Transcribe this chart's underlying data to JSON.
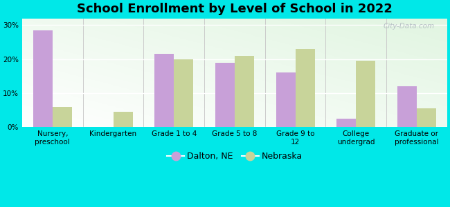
{
  "title": "School Enrollment by Level of School in 2022",
  "categories": [
    "Nursery,\npreschool",
    "Kindergarten",
    "Grade 1 to 4",
    "Grade 5 to 8",
    "Grade 9 to\n12",
    "College\nundergrad",
    "Graduate or\nprofessional"
  ],
  "dalton": [
    28.5,
    0.0,
    21.5,
    19.0,
    16.0,
    2.5,
    12.0
  ],
  "nebraska": [
    6.0,
    4.5,
    20.0,
    21.0,
    23.0,
    19.5,
    5.5
  ],
  "dalton_color": "#c8a0d8",
  "nebraska_color": "#c8d49a",
  "background_color": "#00e8e8",
  "plot_bg": "#f0faee",
  "title_fontsize": 13,
  "tick_label_fontsize": 7.5,
  "legend_fontsize": 9,
  "ylim": [
    0,
    32
  ],
  "yticks": [
    0,
    10,
    20,
    30
  ],
  "ytick_labels": [
    "0%",
    "10%",
    "20%",
    "30%"
  ],
  "bar_width": 0.32,
  "watermark": "City-Data.com"
}
